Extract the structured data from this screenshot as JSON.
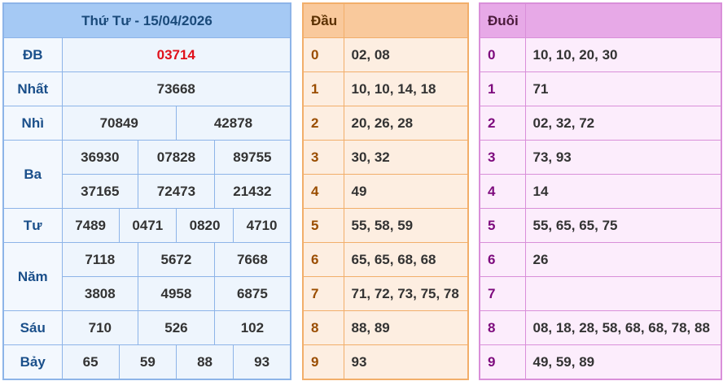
{
  "results": {
    "title": "Thứ Tư - 15/04/2026",
    "db": {
      "label": "ĐB",
      "values": [
        "03714"
      ]
    },
    "nhat": {
      "label": "Nhất",
      "values": [
        "73668"
      ]
    },
    "nhi": {
      "label": "Nhì",
      "values": [
        "70849",
        "42878"
      ]
    },
    "ba": {
      "label": "Ba",
      "values": [
        "36930",
        "07828",
        "89755",
        "37165",
        "72473",
        "21432"
      ]
    },
    "tu": {
      "label": "Tư",
      "values": [
        "7489",
        "0471",
        "0820",
        "4710"
      ]
    },
    "nam": {
      "label": "Năm",
      "values": [
        "7118",
        "5672",
        "7668",
        "3808",
        "4958",
        "6875"
      ]
    },
    "sau": {
      "label": "Sáu",
      "values": [
        "710",
        "526",
        "102"
      ]
    },
    "bay": {
      "label": "Bảy",
      "values": [
        "65",
        "59",
        "88",
        "93"
      ]
    }
  },
  "dau": {
    "header": "Đầu",
    "rows": [
      {
        "k": "0",
        "v": "02, 08"
      },
      {
        "k": "1",
        "v": "10, 10, 14, 18"
      },
      {
        "k": "2",
        "v": "20, 26, 28"
      },
      {
        "k": "3",
        "v": "30, 32"
      },
      {
        "k": "4",
        "v": "49"
      },
      {
        "k": "5",
        "v": "55, 58, 59"
      },
      {
        "k": "6",
        "v": "65, 65, 68, 68"
      },
      {
        "k": "7",
        "v": "71, 72, 73, 75, 78"
      },
      {
        "k": "8",
        "v": "88, 89"
      },
      {
        "k": "9",
        "v": "93"
      }
    ]
  },
  "duoi": {
    "header": "Đuôi",
    "rows": [
      {
        "k": "0",
        "v": "10, 10, 20, 30"
      },
      {
        "k": "1",
        "v": "71"
      },
      {
        "k": "2",
        "v": "02, 32, 72"
      },
      {
        "k": "3",
        "v": "73, 93"
      },
      {
        "k": "4",
        "v": "14"
      },
      {
        "k": "5",
        "v": "55, 65, 65, 75"
      },
      {
        "k": "6",
        "v": "26"
      },
      {
        "k": "7",
        "v": ""
      },
      {
        "k": "8",
        "v": "08, 18, 28, 58, 68, 68, 78, 88"
      },
      {
        "k": "9",
        "v": "49, 59, 89"
      }
    ]
  }
}
